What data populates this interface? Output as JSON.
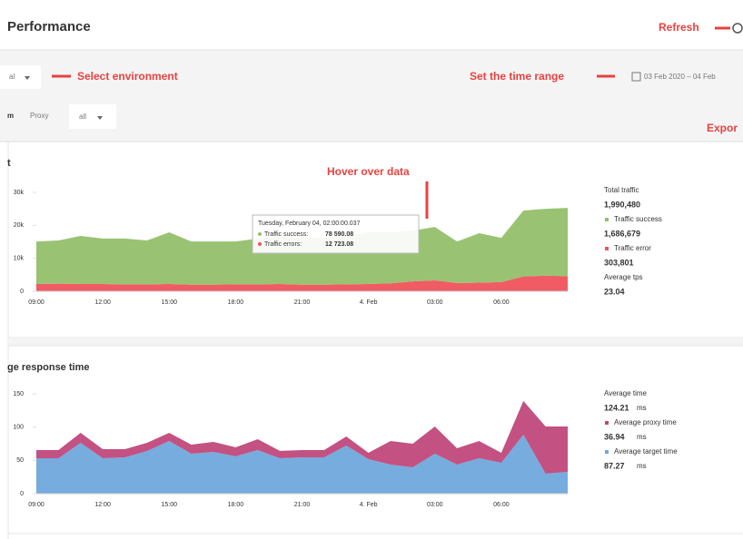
{
  "header": {
    "title": "Performance",
    "refresh_annotation": "Refresh"
  },
  "toolbar": {
    "environment_value": "al",
    "environment_annotation": "Select environment",
    "time_annotation": "Set the time range",
    "date_range": "03 Feb 2020 – 04 Feb",
    "proxy_prefix": "m",
    "proxy_label": "Proxy",
    "proxy_value": "all",
    "export_annotation": "Expor"
  },
  "chart_data": [
    {
      "type": "area",
      "title": "t",
      "categories": [
        "09:00",
        null,
        null,
        "12:00",
        null,
        null,
        "15:00",
        null,
        null,
        "18:00",
        null,
        null,
        "21:00",
        null,
        null,
        "4. Feb",
        null,
        null,
        "03:00",
        null,
        null,
        "06:00",
        null,
        null,
        null
      ],
      "series": [
        {
          "name": "Traffic success",
          "color": "#94c06b",
          "total": "1,686,679",
          "values": [
            12.9,
            13.1,
            14.6,
            13.8,
            13.9,
            13.3,
            15.7,
            13.1,
            13.1,
            13.0,
            13.9,
            14.3,
            14.2,
            14.2,
            14.7,
            15.7,
            15.5,
            15.4,
            16.2,
            12.6,
            15.0,
            13.4,
            20.0,
            20.3,
            20.7
          ]
        },
        {
          "name": "Traffic error",
          "color": "#f0535c",
          "total": "303,801",
          "values": [
            2.2,
            2.3,
            2.2,
            2.2,
            2.1,
            2.1,
            2.2,
            2.0,
            2.0,
            2.1,
            2.1,
            2.2,
            2.0,
            2.0,
            2.1,
            2.2,
            2.4,
            3.0,
            3.3,
            2.5,
            2.6,
            2.8,
            4.5,
            4.7,
            4.6
          ]
        }
      ],
      "stacked": true,
      "ylim": [
        0,
        30
      ],
      "yticks": [
        0,
        {
          "value": 10,
          "label": "10k"
        },
        {
          "value": 20,
          "label": "20k"
        },
        {
          "value": 30,
          "label": "30k"
        }
      ],
      "legend_before": [
        {
          "label": "Total traffic",
          "value": "1,990,480"
        }
      ],
      "legend_after": [
        {
          "label": "Average tps",
          "value": "23.04"
        }
      ],
      "annotation": "Hover over data",
      "tooltip": {
        "title": "Tuesday, February 04, 02:00:00.037",
        "rows": [
          {
            "label": "Traffic success:",
            "value": "78 590.08"
          },
          {
            "label": "Traffic errors:",
            "value": "12 723.08"
          }
        ]
      }
    },
    {
      "type": "area",
      "title": "ge response time",
      "categories": [
        "09:00",
        null,
        null,
        "12:00",
        null,
        null,
        "15:00",
        null,
        null,
        "18:00",
        null,
        null,
        "21:00",
        null,
        null,
        "4. Feb",
        null,
        null,
        "03:00",
        null,
        null,
        "06:00",
        null,
        null,
        null
      ],
      "series": [
        {
          "name": "Average proxy time",
          "color": "#c0487a",
          "total": "36.94",
          "unit": "ms",
          "values": [
            12.3,
            12.3,
            15.0,
            13.6,
            12.2,
            12.3,
            12.3,
            13.7,
            14.9,
            13.6,
            16.4,
            11.0,
            10.9,
            10.9,
            13.6,
            9.6,
            35.4,
            35.4,
            40.9,
            24.5,
            25.9,
            15.0,
            50.5,
            70.9,
            68.2
          ]
        },
        {
          "name": "Average target time",
          "color": "#6fa8dc",
          "total": "87.27",
          "unit": "ms",
          "values": [
            53.2,
            53.2,
            76.4,
            53.2,
            54.6,
            64.1,
            79.1,
            60.0,
            62.8,
            56.0,
            65.5,
            53.2,
            54.6,
            54.6,
            72.3,
            51.8,
            43.7,
            39.6,
            60.0,
            43.7,
            53.2,
            46.4,
            88.7,
            30.0,
            32.7
          ]
        }
      ],
      "stacked": true,
      "ylim": [
        0,
        150
      ],
      "yticks": [
        0,
        50,
        100,
        150
      ],
      "legend_before": [
        {
          "label": "Average time",
          "value": "124.21",
          "unit": "ms"
        }
      ],
      "legend_after": []
    }
  ]
}
